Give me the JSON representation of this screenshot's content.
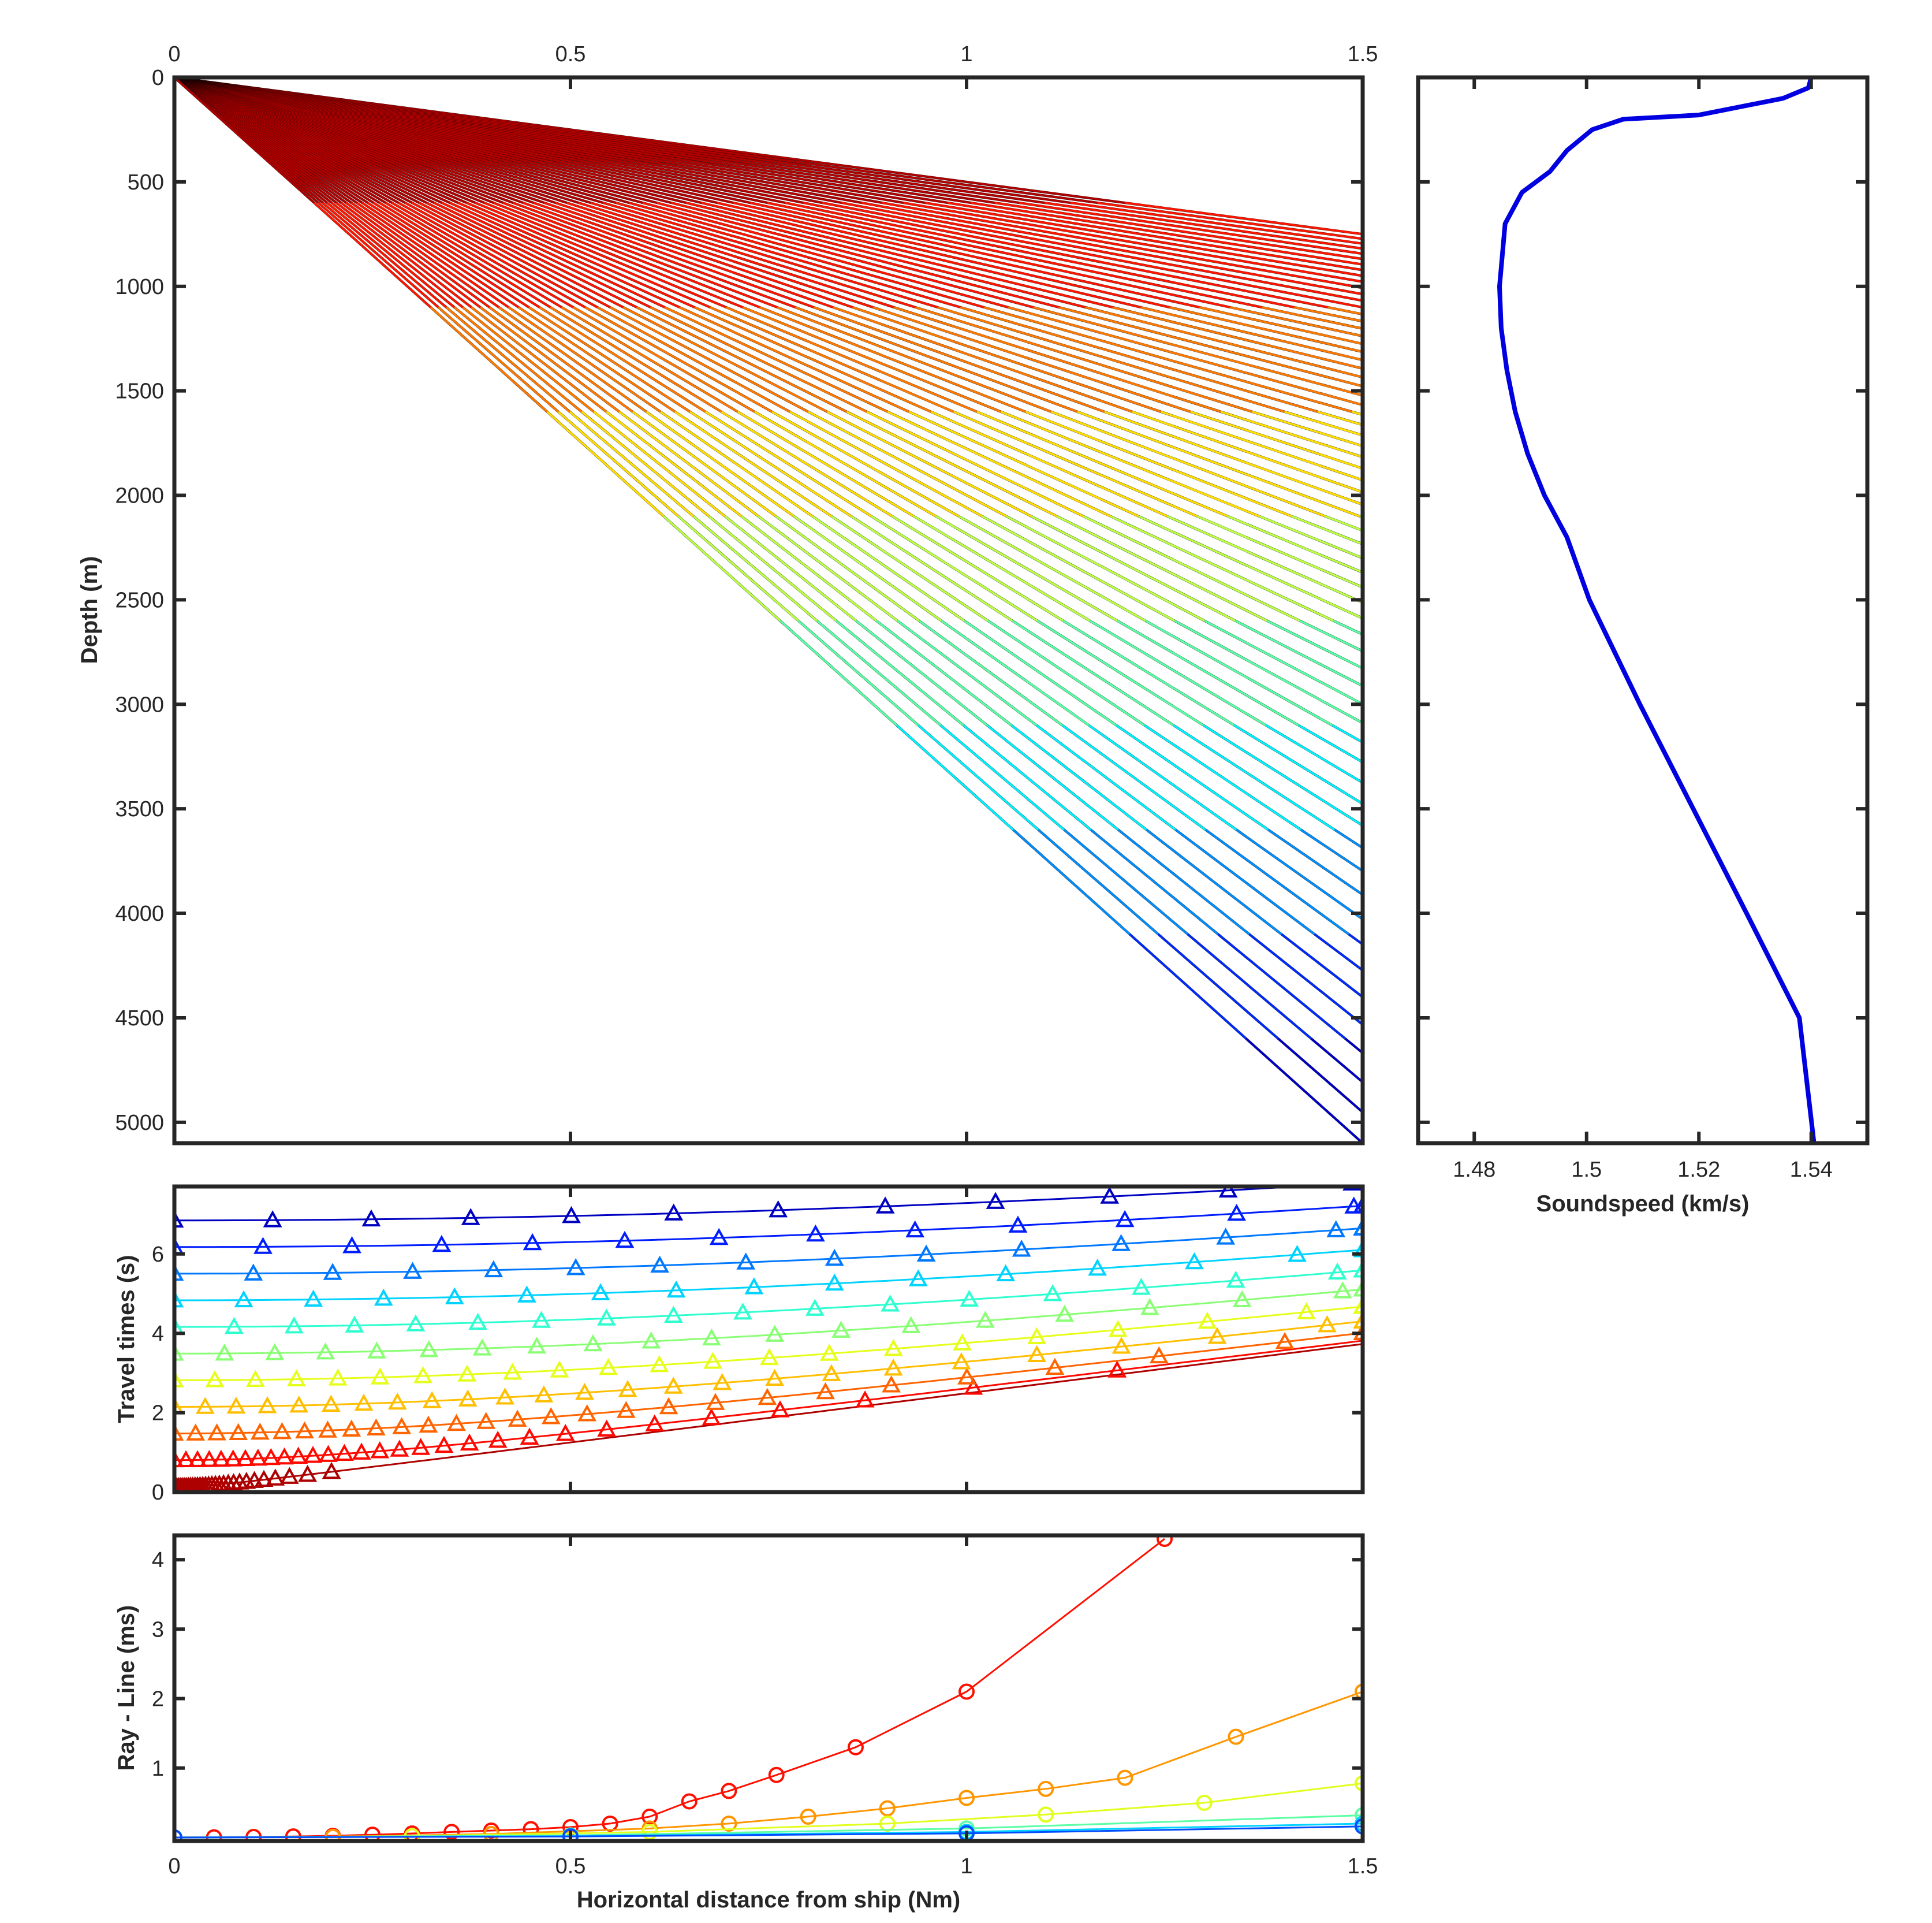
{
  "colors": {
    "axis": "#262626",
    "tick_text": "#262626",
    "soundspeed_line": "#0000e0",
    "ray_tail": "#000000",
    "colormap": "jet"
  },
  "chart_data": [
    {
      "id": "ray-paths",
      "type": "line",
      "title": "",
      "xlabel": "",
      "ylabel": "Depth (m)",
      "xlim": [
        0,
        1.5
      ],
      "ylim": [
        5100,
        0
      ],
      "y_reversed": true,
      "xticks": [
        "0",
        "0.5",
        "1",
        "1.5"
      ],
      "xticks_position": "top",
      "yticks": [
        "0",
        "500",
        "1000",
        "1500",
        "2000",
        "2500",
        "3000",
        "3500",
        "4000",
        "4500",
        "5000"
      ],
      "layer_boundaries_m": [
        0,
        600,
        1100,
        1600,
        2100,
        2600,
        3100,
        3600,
        4100,
        4600,
        5100
      ],
      "ray_count": 66,
      "ray_depth_at_x_1_5_nm": {
        "min": 750,
        "max": 5100
      },
      "grid": false,
      "legend": "none",
      "colormap": "jet"
    },
    {
      "id": "soundspeed-profile",
      "type": "line",
      "title": "",
      "xlabel": "Soundspeed (km/s)",
      "ylabel": "",
      "xlim": [
        1.47,
        1.55
      ],
      "ylim": [
        5100,
        0
      ],
      "y_reversed": true,
      "xticks": [
        "1.48",
        "1.5",
        "1.52",
        "1.54"
      ],
      "series": [
        {
          "name": "",
          "x": [
            1.54,
            1.5395,
            1.535,
            1.52,
            1.5065,
            1.501,
            1.4965,
            1.4935,
            1.491,
            1.4885,
            1.4855,
            1.4845,
            1.4848,
            1.4858,
            1.4873,
            1.4895,
            1.4925,
            1.4965,
            1.5005,
            1.5095,
            1.519,
            1.5285,
            1.5379,
            1.5405
          ],
          "y": [
            0,
            50,
            100,
            180,
            200,
            250,
            350,
            450,
            500,
            550,
            700,
            1000,
            1200,
            1400,
            1600,
            1800,
            2000,
            2200,
            2500,
            3000,
            3500,
            4000,
            4500,
            5100
          ]
        }
      ],
      "grid": false,
      "legend": "none"
    },
    {
      "id": "travel-times",
      "type": "scatter",
      "title": "",
      "xlabel": "",
      "ylabel": "Travel times (s)",
      "xlim": [
        0,
        1.5
      ],
      "ylim": [
        0,
        7.7
      ],
      "xticks": [
        "0",
        "0.5",
        "1",
        "1.5"
      ],
      "yticks": [
        "0",
        "2",
        "4",
        "6"
      ],
      "marker": "triangle",
      "series_by_layer_depth_m": [
        100,
        600,
        1100,
        1600,
        2100,
        2600,
        3100,
        3600,
        4100,
        4600,
        5100
      ],
      "grid": false,
      "legend": "none",
      "colormap": "jet"
    },
    {
      "id": "ray-minus-line",
      "type": "line",
      "title": "",
      "xlabel": "Horizontal distance from ship (Nm)",
      "ylabel": "Ray - Line (ms)",
      "xlim": [
        0,
        1.5
      ],
      "ylim": [
        -0.05,
        4.35
      ],
      "xticks": [
        "0",
        "0.5",
        "1",
        "1.5"
      ],
      "yticks": [
        "1",
        "2",
        "3",
        "4"
      ],
      "marker": "circle",
      "series": [
        {
          "name": "",
          "x": [
            0,
            0.05,
            0.1,
            0.15,
            0.2,
            0.25,
            0.3,
            0.35,
            0.4,
            0.45,
            0.5,
            0.55,
            0.6,
            0.65,
            0.7,
            0.76,
            0.86,
            1.0,
            1.25
          ],
          "y": [
            0,
            0.003,
            0.008,
            0.015,
            0.025,
            0.04,
            0.058,
            0.08,
            0.1,
            0.12,
            0.15,
            0.2,
            0.3,
            0.52,
            0.67,
            0.9,
            1.3,
            2.1,
            4.3
          ]
        },
        {
          "name": "",
          "x": [
            0,
            0.2,
            0.4,
            0.6,
            0.7,
            0.8,
            0.9,
            1.0,
            1.1,
            1.2,
            1.34,
            1.5
          ],
          "y": [
            0,
            0.01,
            0.05,
            0.13,
            0.2,
            0.3,
            0.42,
            0.57,
            0.7,
            0.86,
            1.45,
            2.1
          ]
        },
        {
          "name": "",
          "x": [
            0,
            0.3,
            0.6,
            0.9,
            1.1,
            1.3,
            1.5
          ],
          "y": [
            0,
            0.02,
            0.08,
            0.2,
            0.33,
            0.5,
            0.78
          ]
        },
        {
          "name": "",
          "x": [
            0,
            0.5,
            1.0,
            1.5
          ],
          "y": [
            0,
            0.03,
            0.13,
            0.32
          ]
        },
        {
          "name": "",
          "x": [
            0,
            0.5,
            1.0,
            1.5
          ],
          "y": [
            0,
            0.02,
            0.08,
            0.2
          ]
        },
        {
          "name": "",
          "x": [
            0,
            0.5,
            1.0,
            1.5
          ],
          "y": [
            0,
            0.015,
            0.06,
            0.16
          ]
        }
      ],
      "grid": false,
      "legend": "none"
    }
  ]
}
